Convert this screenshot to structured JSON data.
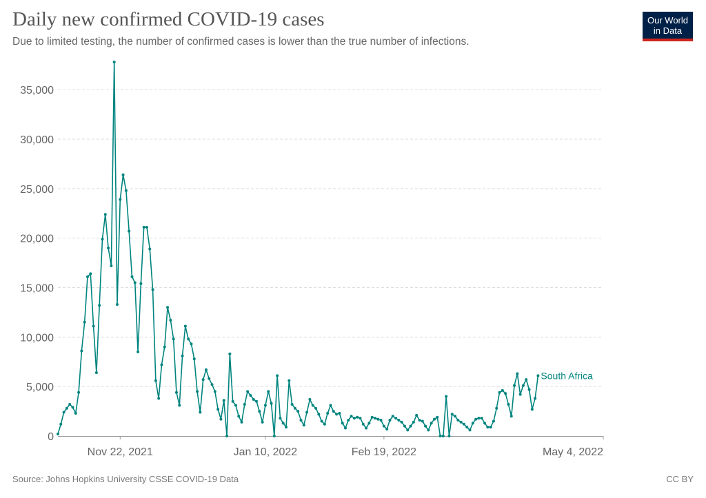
{
  "header": {
    "title": "Daily new confirmed COVID-19 cases",
    "subtitle": "Due to limited testing, the number of confirmed cases is lower than the true number of infections."
  },
  "logo": {
    "line1": "Our World",
    "line2": "in Data",
    "bg_color": "#002147",
    "accent_color": "#ce261e"
  },
  "footer": {
    "source": "Source: Johns Hopkins University CSSE COVID-19 Data",
    "license": "CC BY"
  },
  "chart_data": {
    "type": "line",
    "title": "Daily new confirmed COVID-19 cases",
    "xlabel": "",
    "ylabel": "",
    "ylim": [
      0,
      37800
    ],
    "y_ticks": [
      {
        "value": 0,
        "label": "0"
      },
      {
        "value": 5000,
        "label": "5,000"
      },
      {
        "value": 10000,
        "label": "10,000"
      },
      {
        "value": 15000,
        "label": "15,000"
      },
      {
        "value": 20000,
        "label": "20,000"
      },
      {
        "value": 25000,
        "label": "25,000"
      },
      {
        "value": 30000,
        "label": "30,000"
      },
      {
        "value": 35000,
        "label": "35,000"
      }
    ],
    "x_ticks": [
      {
        "date": "2021-11-22",
        "label": "Nov 22, 2021"
      },
      {
        "date": "2022-01-10",
        "label": "Jan 10, 2022"
      },
      {
        "date": "2022-02-19",
        "label": "Feb 19, 2022"
      },
      {
        "date": "2022-05-04",
        "label": "May 4, 2022"
      }
    ],
    "x_range": [
      "2021-11-01",
      "2022-05-04"
    ],
    "grid": true,
    "line_color": "#00847e",
    "series": [
      {
        "name": "South Africa",
        "start_date": "2021-11-01",
        "values": [
          200,
          1200,
          2400,
          2800,
          3200,
          2900,
          2300,
          4400,
          8600,
          11500,
          16100,
          16400,
          11100,
          6400,
          13200,
          19900,
          22400,
          19000,
          17200,
          37800,
          13300,
          23900,
          26400,
          24800,
          20700,
          16100,
          15500,
          8500,
          15400,
          21100,
          21100,
          18900,
          14800,
          5600,
          3800,
          7200,
          9000,
          13000,
          11700,
          9800,
          4400,
          3100,
          8100,
          11100,
          9800,
          9300,
          7800,
          4500,
          2400,
          5700,
          6700,
          5800,
          5200,
          4500,
          2700,
          1700,
          3600,
          0,
          8300,
          3500,
          3100,
          2000,
          1400,
          3200,
          4500,
          4100,
          3700,
          3500,
          2500,
          1400,
          3100,
          4500,
          3300,
          0,
          6100,
          1800,
          1300,
          900,
          5600,
          3200,
          2800,
          2500,
          1600,
          1100,
          2400,
          3700,
          3100,
          2800,
          2200,
          1500,
          1200,
          2300,
          3100,
          2500,
          2200,
          2300,
          1300,
          800,
          1600,
          2000,
          1800,
          1900,
          1800,
          1200,
          800,
          1300,
          1900,
          1800,
          1700,
          1600,
          1000,
          700,
          1600,
          2000,
          1800,
          1600,
          1400,
          1000,
          600,
          1000,
          1400,
          2100,
          1600,
          1500,
          1000,
          600,
          1300,
          1700,
          1900,
          0,
          0,
          4000,
          0,
          2200,
          2000,
          1600,
          1400,
          1200,
          900,
          600,
          1300,
          1700,
          1800,
          1800,
          1300,
          900,
          900,
          1500,
          2800,
          4400,
          4600,
          4300,
          3200,
          2000,
          5100,
          6300,
          4200,
          5100,
          5700,
          4700,
          2700,
          3800,
          6100
        ]
      }
    ]
  }
}
